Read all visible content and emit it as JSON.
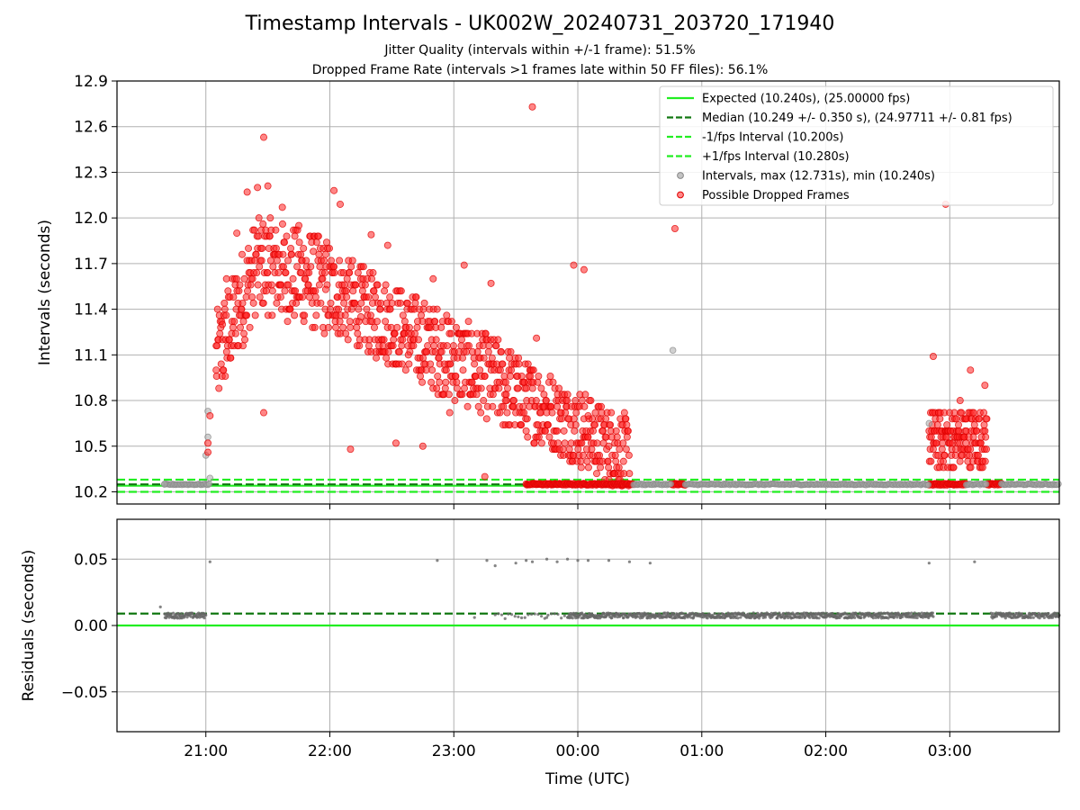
{
  "chart_data": [
    {
      "type": "scatter",
      "title": "Timestamp Intervals - UK002W_20240731_203720_171940",
      "subtitle_lines": [
        "Jitter Quality (intervals within +/-1 frame): 51.5%",
        "Dropped Frame Rate (intervals >1 frames late within 50 FF files): 56.1%"
      ],
      "ylabel": "Intervals (seconds)",
      "xlim": [
        "20:17",
        "03:53"
      ],
      "ylim": [
        10.12,
        12.9
      ],
      "yticks": [
        "10.2",
        "10.5",
        "10.8",
        "11.1",
        "11.4",
        "11.7",
        "12.0",
        "12.3",
        "12.6",
        "12.9"
      ],
      "xticks": [
        "21:00",
        "22:00",
        "23:00",
        "00:00",
        "01:00",
        "02:00",
        "03:00"
      ],
      "grid": true,
      "legend_position": "top-right",
      "reference_lines": [
        {
          "label": "Expected (10.240s), (25.00000 fps)",
          "y": 10.24,
          "color": "#22ee22",
          "style": "solid"
        },
        {
          "label": "Median (10.249 +/- 0.350 s), (24.97711 +/- 0.81 fps)",
          "y": 10.249,
          "color": "#117711",
          "style": "dashed"
        },
        {
          "label": "-1/fps Interval (10.200s)",
          "y": 10.2,
          "color": "#22ee22",
          "style": "dashed"
        },
        {
          "label": "+1/fps Interval (10.280s)",
          "y": 10.28,
          "color": "#22ee22",
          "style": "dashed"
        }
      ],
      "series": [
        {
          "name": "Intervals, max (12.731s), min (10.240s)",
          "color": "#888888",
          "points": [
            {
              "x": "20:40",
              "y": 10.25
            },
            {
              "x": "21:00",
              "y": 10.44
            },
            {
              "x": "21:01",
              "y": 10.73
            },
            {
              "x": "21:01",
              "y": 10.56
            },
            {
              "x": "21:02",
              "y": 10.29
            },
            {
              "x": "00:46",
              "y": 11.13
            },
            {
              "x": "02:50",
              "y": 10.65
            }
          ]
        },
        {
          "name": "Possible Dropped Frames",
          "color": "#ff2222",
          "points": [
            {
              "x": "21:01",
              "y": 10.52
            },
            {
              "x": "21:01",
              "y": 10.46
            },
            {
              "x": "21:02",
              "y": 10.7
            },
            {
              "x": "21:05",
              "y": 11.0
            },
            {
              "x": "21:08",
              "y": 11.3
            },
            {
              "x": "21:10",
              "y": 11.6
            },
            {
              "x": "21:15",
              "y": 11.9
            },
            {
              "x": "21:20",
              "y": 12.17
            },
            {
              "x": "21:25",
              "y": 12.2
            },
            {
              "x": "21:28",
              "y": 12.53
            },
            {
              "x": "21:28",
              "y": 10.72
            },
            {
              "x": "21:30",
              "y": 12.21
            },
            {
              "x": "21:37",
              "y": 12.07
            },
            {
              "x": "21:45",
              "y": 11.95
            },
            {
              "x": "21:52",
              "y": 11.78
            },
            {
              "x": "21:58",
              "y": 11.53
            },
            {
              "x": "22:02",
              "y": 12.18
            },
            {
              "x": "22:05",
              "y": 12.09
            },
            {
              "x": "22:10",
              "y": 10.48
            },
            {
              "x": "22:15",
              "y": 11.35
            },
            {
              "x": "22:20",
              "y": 11.89
            },
            {
              "x": "22:28",
              "y": 11.82
            },
            {
              "x": "22:32",
              "y": 10.52
            },
            {
              "x": "22:38",
              "y": 11.1
            },
            {
              "x": "22:45",
              "y": 10.5
            },
            {
              "x": "22:50",
              "y": 11.6
            },
            {
              "x": "22:58",
              "y": 10.72
            },
            {
              "x": "23:05",
              "y": 11.69
            },
            {
              "x": "23:15",
              "y": 10.3
            },
            {
              "x": "23:18",
              "y": 11.57
            },
            {
              "x": "23:25",
              "y": 10.8
            },
            {
              "x": "23:35",
              "y": 10.6
            },
            {
              "x": "23:38",
              "y": 12.73
            },
            {
              "x": "23:40",
              "y": 11.21
            },
            {
              "x": "23:50",
              "y": 10.6
            },
            {
              "x": "23:58",
              "y": 11.69
            },
            {
              "x": "00:03",
              "y": 11.66
            },
            {
              "x": "00:05",
              "y": 10.7
            },
            {
              "x": "00:15",
              "y": 10.5
            },
            {
              "x": "00:47",
              "y": 11.93
            },
            {
              "x": "02:52",
              "y": 11.09
            },
            {
              "x": "02:58",
              "y": 12.09
            },
            {
              "x": "03:05",
              "y": 10.8
            },
            {
              "x": "03:10",
              "y": 11.0
            },
            {
              "x": "03:17",
              "y": 10.9
            }
          ]
        }
      ]
    },
    {
      "type": "scatter",
      "ylabel": "Residuals (seconds)",
      "xlabel": "Time (UTC)",
      "xlim": [
        "20:17",
        "03:53"
      ],
      "ylim": [
        -0.08,
        0.08
      ],
      "yticks": [
        "−0.05",
        "0.00",
        "0.05"
      ],
      "xticks": [
        "21:00",
        "22:00",
        "23:00",
        "00:00",
        "01:00",
        "02:00",
        "03:00"
      ],
      "grid": true,
      "reference_lines": [
        {
          "y": 0.0,
          "color": "#22ee22",
          "style": "solid"
        },
        {
          "y": 0.009,
          "color": "#117711",
          "style": "dashed"
        }
      ],
      "series": [
        {
          "color": "#666666",
          "points": [
            {
              "x": "20:38",
              "y": 0.014
            },
            {
              "x": "21:02",
              "y": 0.048
            },
            {
              "x": "22:52",
              "y": 0.049
            },
            {
              "x": "23:16",
              "y": 0.049
            },
            {
              "x": "23:20",
              "y": 0.045
            },
            {
              "x": "23:30",
              "y": 0.047
            },
            {
              "x": "23:35",
              "y": 0.049
            },
            {
              "x": "23:38",
              "y": 0.048
            },
            {
              "x": "23:45",
              "y": 0.05
            },
            {
              "x": "23:50",
              "y": 0.048
            },
            {
              "x": "23:55",
              "y": 0.05
            },
            {
              "x": "00:00",
              "y": 0.049
            },
            {
              "x": "00:05",
              "y": 0.049
            },
            {
              "x": "00:15",
              "y": 0.049
            },
            {
              "x": "00:25",
              "y": 0.048
            },
            {
              "x": "00:35",
              "y": 0.047
            },
            {
              "x": "02:50",
              "y": 0.047
            },
            {
              "x": "03:12",
              "y": 0.048
            },
            {
              "x": "23:10",
              "y": 0.006
            },
            {
              "x": "23:45",
              "y": 0.006
            }
          ]
        }
      ]
    }
  ]
}
